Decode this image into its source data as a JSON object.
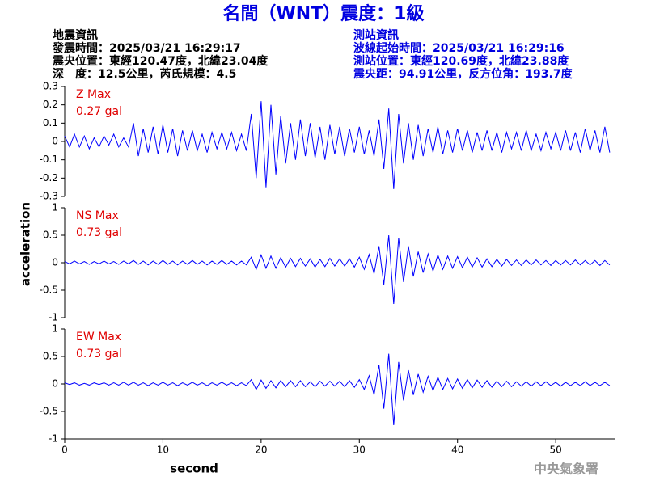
{
  "header": {
    "title": "名間（WNT）震度：1級",
    "event_info": [
      "地震資訊",
      "發震時間：2025/03/21 16:29:17",
      "震央位置：東經120.47度，北緯23.04度",
      "深　度：12.5公里，芮氏規模：4.5"
    ],
    "station_info": [
      "測站資訊",
      "波線起始時間：2025/03/21 16:29:16",
      "測站位置：東經120.69度，北緯23.88度",
      "震央距：94.91公里，反方位角：193.7度"
    ]
  },
  "xlabel": "second",
  "ylabel": "acceleration",
  "footer": "中央氣象署",
  "chart_data": [
    {
      "type": "line",
      "label": "Z Max",
      "max_label": "0.27 gal",
      "color": "#0000ff",
      "xlim": [
        0,
        56
      ],
      "ylim": [
        -0.3,
        0.3
      ],
      "yticks": [
        -0.3,
        -0.2,
        -0.1,
        0,
        0.1,
        0.2,
        0.3
      ],
      "x": [
        0,
        0.5,
        1,
        1.5,
        2,
        2.5,
        3,
        3.5,
        4,
        4.5,
        5,
        5.5,
        6,
        6.5,
        7,
        7.5,
        8,
        8.5,
        9,
        9.5,
        10,
        10.5,
        11,
        11.5,
        12,
        12.5,
        13,
        13.5,
        14,
        14.5,
        15,
        15.5,
        16,
        16.5,
        17,
        17.5,
        18,
        18.5,
        19,
        19.5,
        20,
        20.5,
        21,
        21.5,
        22,
        22.5,
        23,
        23.5,
        24,
        24.5,
        25,
        25.5,
        26,
        26.5,
        27,
        27.5,
        28,
        28.5,
        29,
        29.5,
        30,
        30.5,
        31,
        31.5,
        32,
        32.5,
        33,
        33.5,
        34,
        34.5,
        35,
        35.5,
        36,
        36.5,
        37,
        37.5,
        38,
        38.5,
        39,
        39.5,
        40,
        40.5,
        41,
        41.5,
        42,
        42.5,
        43,
        43.5,
        44,
        44.5,
        45,
        45.5,
        46,
        46.5,
        47,
        47.5,
        48,
        48.5,
        49,
        49.5,
        50,
        50.5,
        51,
        51.5,
        52,
        52.5,
        53,
        53.5,
        54,
        54.5,
        55,
        55.5
      ],
      "values": [
        0.03,
        -0.03,
        0.04,
        -0.03,
        0.03,
        -0.04,
        0.02,
        -0.03,
        0.03,
        -0.02,
        0.04,
        -0.03,
        0.02,
        -0.03,
        0.1,
        -0.08,
        0.07,
        -0.06,
        0.08,
        -0.07,
        0.09,
        -0.06,
        0.07,
        -0.08,
        0.06,
        -0.05,
        0.06,
        -0.05,
        0.04,
        -0.06,
        0.05,
        -0.04,
        0.05,
        -0.04,
        0.05,
        -0.05,
        0.04,
        -0.05,
        0.15,
        -0.2,
        0.22,
        -0.25,
        0.2,
        -0.18,
        0.14,
        -0.12,
        0.1,
        -0.1,
        0.12,
        -0.08,
        0.1,
        -0.09,
        0.08,
        -0.1,
        0.09,
        -0.07,
        0.08,
        -0.08,
        0.07,
        -0.06,
        0.08,
        -0.07,
        0.06,
        -0.08,
        0.12,
        -0.15,
        0.18,
        -0.26,
        0.15,
        -0.12,
        0.1,
        -0.1,
        0.09,
        -0.08,
        0.07,
        -0.06,
        0.08,
        -0.07,
        0.06,
        -0.06,
        0.07,
        -0.05,
        0.06,
        -0.06,
        0.05,
        -0.05,
        0.06,
        -0.05,
        0.05,
        -0.06,
        0.05,
        -0.04,
        0.05,
        -0.05,
        0.06,
        -0.05,
        0.04,
        -0.05,
        0.05,
        -0.04,
        0.05,
        -0.05,
        0.06,
        -0.05,
        0.05,
        -0.06,
        0.07,
        -0.05,
        0.06,
        -0.06,
        0.08,
        -0.06
      ]
    },
    {
      "type": "line",
      "label": "NS Max",
      "max_label": "0.73 gal",
      "color": "#0000ff",
      "xlim": [
        0,
        56
      ],
      "ylim": [
        -1,
        1
      ],
      "yticks": [
        -1,
        -0.5,
        0,
        0.5,
        1
      ],
      "x": [
        0,
        0.5,
        1,
        1.5,
        2,
        2.5,
        3,
        3.5,
        4,
        4.5,
        5,
        5.5,
        6,
        6.5,
        7,
        7.5,
        8,
        8.5,
        9,
        9.5,
        10,
        10.5,
        11,
        11.5,
        12,
        12.5,
        13,
        13.5,
        14,
        14.5,
        15,
        15.5,
        16,
        16.5,
        17,
        17.5,
        18,
        18.5,
        19,
        19.5,
        20,
        20.5,
        21,
        21.5,
        22,
        22.5,
        23,
        23.5,
        24,
        24.5,
        25,
        25.5,
        26,
        26.5,
        27,
        27.5,
        28,
        28.5,
        29,
        29.5,
        30,
        30.5,
        31,
        31.5,
        32,
        32.5,
        33,
        33.5,
        34,
        34.5,
        35,
        35.5,
        36,
        36.5,
        37,
        37.5,
        38,
        38.5,
        39,
        39.5,
        40,
        40.5,
        41,
        41.5,
        42,
        42.5,
        43,
        43.5,
        44,
        44.5,
        45,
        45.5,
        46,
        46.5,
        47,
        47.5,
        48,
        48.5,
        49,
        49.5,
        50,
        50.5,
        51,
        51.5,
        52,
        52.5,
        53,
        53.5,
        54,
        54.5,
        55,
        55.5
      ],
      "values": [
        0.02,
        -0.02,
        0.03,
        -0.02,
        0.02,
        -0.03,
        0.02,
        -0.02,
        0.03,
        -0.02,
        0.02,
        -0.03,
        0.03,
        -0.02,
        0.04,
        -0.03,
        0.03,
        -0.04,
        0.03,
        -0.03,
        0.04,
        -0.03,
        0.03,
        -0.04,
        0.03,
        -0.03,
        0.04,
        -0.03,
        0.03,
        -0.04,
        0.03,
        -0.03,
        0.04,
        -0.03,
        0.03,
        -0.04,
        0.03,
        -0.04,
        0.1,
        -0.12,
        0.14,
        -0.1,
        0.12,
        -0.1,
        0.09,
        -0.08,
        0.08,
        -0.07,
        0.08,
        -0.06,
        0.07,
        -0.08,
        0.06,
        -0.07,
        0.08,
        -0.06,
        0.07,
        -0.06,
        0.07,
        -0.08,
        0.1,
        -0.12,
        0.15,
        -0.2,
        0.3,
        -0.4,
        0.5,
        -0.75,
        0.45,
        -0.35,
        0.3,
        -0.25,
        0.2,
        -0.18,
        0.16,
        -0.15,
        0.14,
        -0.12,
        0.12,
        -0.1,
        0.11,
        -0.09,
        0.1,
        -0.08,
        0.09,
        -0.08,
        0.07,
        -0.07,
        0.06,
        -0.06,
        0.06,
        -0.05,
        0.05,
        -0.05,
        0.05,
        -0.04,
        0.05,
        -0.04,
        0.04,
        -0.05,
        0.04,
        -0.04,
        0.04,
        -0.04,
        0.05,
        -0.04,
        0.04,
        -0.04,
        0.04,
        -0.05,
        0.04,
        -0.04
      ]
    },
    {
      "type": "line",
      "label": "EW Max",
      "max_label": "0.73 gal",
      "color": "#0000ff",
      "xlim": [
        0,
        56
      ],
      "xticks": [
        0,
        10,
        20,
        30,
        40,
        50
      ],
      "ylim": [
        -1,
        1
      ],
      "yticks": [
        -1,
        -0.5,
        0,
        0.5,
        1
      ],
      "x": [
        0,
        0.5,
        1,
        1.5,
        2,
        2.5,
        3,
        3.5,
        4,
        4.5,
        5,
        5.5,
        6,
        6.5,
        7,
        7.5,
        8,
        8.5,
        9,
        9.5,
        10,
        10.5,
        11,
        11.5,
        12,
        12.5,
        13,
        13.5,
        14,
        14.5,
        15,
        15.5,
        16,
        16.5,
        17,
        17.5,
        18,
        18.5,
        19,
        19.5,
        20,
        20.5,
        21,
        21.5,
        22,
        22.5,
        23,
        23.5,
        24,
        24.5,
        25,
        25.5,
        26,
        26.5,
        27,
        27.5,
        28,
        28.5,
        29,
        29.5,
        30,
        30.5,
        31,
        31.5,
        32,
        32.5,
        33,
        33.5,
        34,
        34.5,
        35,
        35.5,
        36,
        36.5,
        37,
        37.5,
        38,
        38.5,
        39,
        39.5,
        40,
        40.5,
        41,
        41.5,
        42,
        42.5,
        43,
        43.5,
        44,
        44.5,
        45,
        45.5,
        46,
        46.5,
        47,
        47.5,
        48,
        48.5,
        49,
        49.5,
        50,
        50.5,
        51,
        51.5,
        52,
        52.5,
        53,
        53.5,
        54,
        54.5,
        55,
        55.5
      ],
      "values": [
        0.02,
        -0.01,
        0.02,
        -0.02,
        0.01,
        -0.02,
        0.02,
        -0.01,
        0.02,
        -0.02,
        0.02,
        -0.02,
        0.03,
        -0.02,
        0.03,
        -0.02,
        0.02,
        -0.03,
        0.02,
        -0.02,
        0.03,
        -0.02,
        0.02,
        -0.03,
        0.02,
        -0.02,
        0.03,
        -0.02,
        0.02,
        -0.03,
        0.02,
        -0.02,
        0.03,
        -0.02,
        0.02,
        -0.03,
        0.02,
        -0.03,
        0.08,
        -0.1,
        0.07,
        -0.08,
        0.06,
        -0.07,
        0.06,
        -0.05,
        0.06,
        -0.05,
        0.06,
        -0.05,
        0.04,
        -0.05,
        0.05,
        -0.04,
        0.05,
        -0.04,
        0.05,
        -0.05,
        0.06,
        -0.06,
        0.08,
        -0.1,
        0.15,
        -0.2,
        0.35,
        -0.45,
        0.55,
        -0.75,
        0.4,
        -0.3,
        0.25,
        -0.2,
        0.18,
        -0.15,
        0.14,
        -0.12,
        0.12,
        -0.1,
        0.1,
        -0.09,
        0.09,
        -0.08,
        0.08,
        -0.07,
        0.07,
        -0.06,
        0.06,
        -0.06,
        0.05,
        -0.05,
        0.05,
        -0.05,
        0.04,
        -0.04,
        0.04,
        -0.04,
        0.04,
        -0.03,
        0.04,
        -0.03,
        0.03,
        -0.04,
        0.03,
        -0.03,
        0.03,
        -0.03,
        0.04,
        -0.03,
        0.03,
        -0.03,
        0.03,
        -0.03
      ]
    }
  ]
}
